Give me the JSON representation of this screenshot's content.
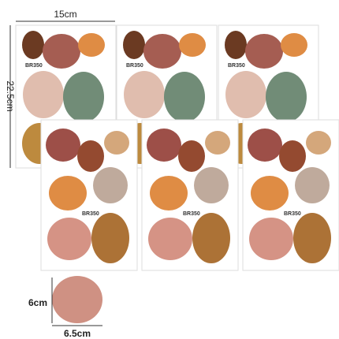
{
  "dimensions": {
    "width_label": "15cm",
    "height_label": "22.5cm"
  },
  "sheets": [
    {
      "label": "BR350"
    },
    {
      "label": "BR350"
    },
    {
      "label": "BR350"
    },
    {
      "label": "BR350"
    },
    {
      "label": "BR350"
    },
    {
      "label": "BR350"
    }
  ],
  "sample": {
    "height_label": "6cm",
    "width_label": "6.5cm"
  }
}
